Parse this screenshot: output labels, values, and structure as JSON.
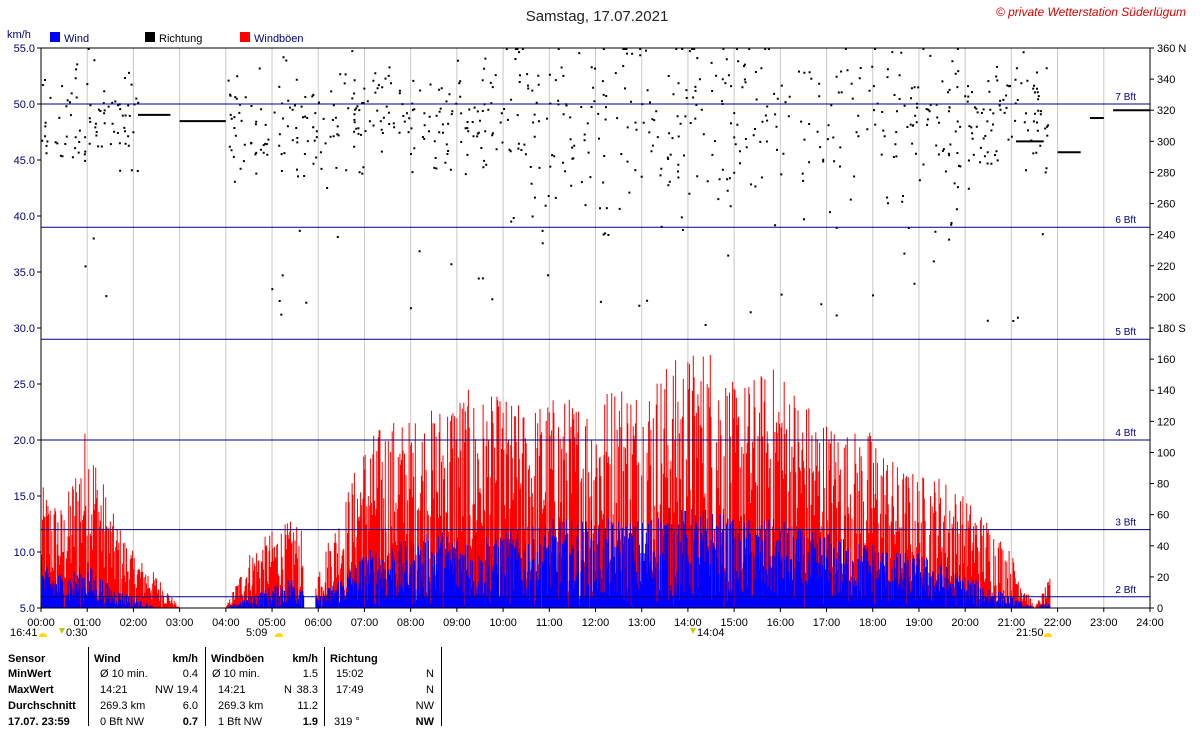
{
  "header": {
    "title": "Samstag, 17.07.2021",
    "copyright": "© private Wetterstation Süderlügum",
    "y_unit": "km/h",
    "legend": [
      {
        "label": "Wind",
        "color": "#0000ff"
      },
      {
        "label": "Richtung",
        "color": "#000000"
      },
      {
        "label": "Windböen",
        "color": "#ff0000"
      }
    ]
  },
  "markers": {
    "sunrise_left": "16:41",
    "sunrise_time": "5:09",
    "sunset_time": "21:50",
    "moon_time": "0:30",
    "noon_time": "14:04",
    "right_edge": "00"
  },
  "chart_data": {
    "type": "line",
    "title": "Samstag, 17.07.2021",
    "ylabel": "km/h",
    "ylim": [
      5.0,
      55.0
    ],
    "y_ticks": [
      "55.0",
      "50.0",
      "45.0",
      "40.0",
      "35.0",
      "30.0",
      "25.0",
      "20.0",
      "15.0",
      "10.0",
      "5.0"
    ],
    "y2_ticks": [
      "360 N",
      "340",
      "320",
      "300",
      "280",
      "260",
      "240",
      "220",
      "200",
      "180 S",
      "160",
      "140",
      "120",
      "100",
      "80",
      "60",
      "40",
      "20",
      "0"
    ],
    "x_ticks": [
      "00:00",
      "01:00",
      "02:00",
      "03:00",
      "04:00",
      "05:00",
      "06:00",
      "07:00",
      "08:00",
      "09:00",
      "10:00",
      "11:00",
      "12:00",
      "13:00",
      "14:00",
      "15:00",
      "16:00",
      "17:00",
      "18:00",
      "19:00",
      "20:00",
      "21:00",
      "22:00",
      "23:00",
      "24:00"
    ],
    "beaufort_lines": [
      {
        "label": "2 Bft",
        "value": 6.0
      },
      {
        "label": "3 Bft",
        "value": 12.0
      },
      {
        "label": "4 Bft",
        "value": 20.0
      },
      {
        "label": "5 Bft",
        "value": 29.0
      },
      {
        "label": "6 Bft",
        "value": 39.0
      },
      {
        "label": "7 Bft",
        "value": 50.0
      }
    ],
    "gust_envelope": {
      "hours": [
        0,
        0.5,
        1,
        1.5,
        2,
        2.5,
        3,
        3.5,
        4,
        4.5,
        5,
        5.5,
        6,
        6.5,
        7,
        7.5,
        8,
        8.5,
        9,
        9.5,
        10,
        10.5,
        11,
        11.5,
        12,
        12.5,
        13,
        13.5,
        14,
        14.5,
        15,
        15.5,
        16,
        16.5,
        17,
        17.5,
        18,
        18.5,
        19,
        19.5,
        20,
        20.5,
        21,
        21.5,
        22
      ],
      "values": [
        16,
        14,
        22,
        14,
        10,
        8,
        5,
        5,
        5,
        10,
        12,
        13,
        9,
        14,
        20,
        22,
        22,
        23,
        25,
        24,
        24,
        23,
        24,
        24,
        24,
        26,
        25,
        27,
        28,
        29,
        25,
        26,
        27,
        24,
        22,
        21,
        21,
        18,
        17,
        17,
        15,
        13,
        10,
        5,
        9
      ]
    },
    "wind_envelope": {
      "hours": [
        0,
        0.5,
        1,
        1.5,
        2,
        2.5,
        3,
        3.5,
        4,
        4.5,
        5,
        5.5,
        6,
        6.5,
        7,
        7.5,
        8,
        8.5,
        9,
        9.5,
        10,
        10.5,
        11,
        11.5,
        12,
        12.5,
        13,
        13.5,
        14,
        14.5,
        15,
        15.5,
        16,
        16.5,
        17,
        17.5,
        18,
        18.5,
        19,
        19.5,
        20,
        20.5,
        21,
        21.5,
        22
      ],
      "values": [
        9,
        8,
        9,
        7,
        6,
        5,
        5,
        5,
        5,
        6,
        7,
        8,
        6,
        8,
        10,
        11,
        11,
        12,
        12,
        12,
        12,
        12,
        13,
        13,
        13,
        13,
        13,
        14,
        14,
        14,
        13,
        13,
        13,
        12,
        12,
        11,
        11,
        10,
        10,
        9,
        8,
        7,
        6,
        5,
        6
      ]
    },
    "direction_segments": [
      {
        "from": 2.1,
        "to": 2.8,
        "value": 317
      },
      {
        "from": 3.0,
        "to": 4.0,
        "value": 313
      },
      {
        "from": 21.1,
        "to": 21.7,
        "value": 300
      },
      {
        "from": 22.0,
        "to": 22.5,
        "value": 293
      },
      {
        "from": 22.7,
        "to": 23.0,
        "value": 315
      },
      {
        "from": 23.2,
        "to": 24.0,
        "value": 320
      }
    ]
  },
  "stats": {
    "sensor_header": "Sensor",
    "wind_header": "Wind",
    "wind_unit": "km/h",
    "gust_header": "Windböen",
    "gust_unit": "km/h",
    "dir_header": "Richtung",
    "rows": [
      {
        "label": "MinWert",
        "w1": "Ø 10 min.",
        "w2": "",
        "w3": "0.4",
        "g1": "Ø 10 min.",
        "g2": "",
        "g3": "1.5",
        "d1": "15:02",
        "d2": "N"
      },
      {
        "label": "MaxWert",
        "w1": "14:21",
        "w2": "NW",
        "w3": "19.4",
        "g1": "14:21",
        "g2": "N",
        "g3": "38.3",
        "d1": "17:49",
        "d2": "N"
      },
      {
        "label": "Durchschnitt",
        "w1": "269.3 km",
        "w2": "",
        "w3": "6.0",
        "g1": "269.3 km",
        "g2": "",
        "g3": "11.2",
        "d1": "",
        "d2": "NW"
      },
      {
        "label": "17.07. 23:59",
        "w1": "0 Bft NW",
        "w2": "",
        "w3": "0.7",
        "g1": "1 Bft NW",
        "g2": "",
        "g3": "1.9",
        "d1": "319 °",
        "d2": "NW"
      }
    ]
  }
}
